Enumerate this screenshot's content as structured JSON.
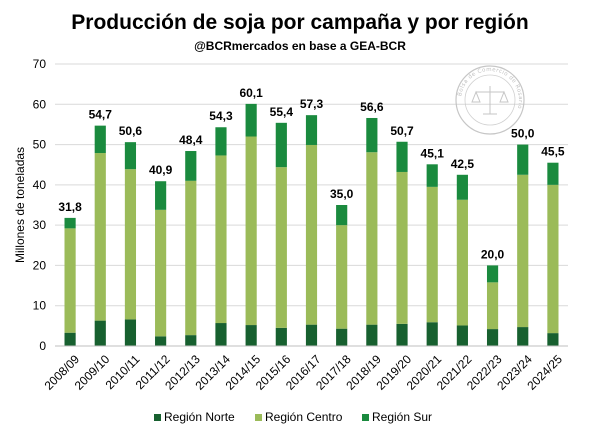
{
  "chart_data": {
    "type": "bar",
    "stacked": true,
    "title": "Producción de soja por campaña y por región",
    "subtitle": "@BCRmercados en base a GEA-BCR",
    "ylabel": "Millones de toneladas",
    "xlabel": "",
    "ylim": [
      0,
      70
    ],
    "yticks": [
      0,
      10,
      20,
      30,
      40,
      50,
      60,
      70
    ],
    "grid": true,
    "legend_position": "bottom",
    "categories": [
      "2008/09",
      "2009/10",
      "2010/11",
      "2011/12",
      "2012/13",
      "2013/14",
      "2014/15",
      "2015/16",
      "2016/17",
      "2017/18",
      "2018/19",
      "2019/20",
      "2020/21",
      "2021/22",
      "2022/23",
      "2023/24",
      "2024/25"
    ],
    "series": [
      {
        "name": "Región Norte",
        "color": "#17602f",
        "values": [
          3.3,
          6.3,
          6.6,
          2.4,
          2.7,
          5.7,
          5.2,
          4.5,
          5.3,
          4.3,
          5.3,
          5.5,
          5.9,
          5.1,
          4.2,
          4.7,
          3.2
        ]
      },
      {
        "name": "Región Centro",
        "color": "#9bbb59",
        "values": [
          25.9,
          41.6,
          37.3,
          31.4,
          38.3,
          41.6,
          46.8,
          39.9,
          44.6,
          25.7,
          42.8,
          37.7,
          33.6,
          31.2,
          11.6,
          37.8,
          36.8
        ]
      },
      {
        "name": "Región Sur",
        "color": "#1a8a3e",
        "values": [
          2.6,
          6.8,
          6.7,
          7.1,
          7.4,
          7.0,
          8.1,
          11.0,
          7.4,
          5.0,
          8.5,
          7.5,
          5.6,
          6.2,
          4.2,
          7.5,
          5.5
        ]
      }
    ],
    "totals": [
      "31,8",
      "54,7",
      "50,6",
      "40,9",
      "48,4",
      "54,3",
      "60,1",
      "55,4",
      "57,3",
      "35,0",
      "56,6",
      "50,7",
      "45,1",
      "42,5",
      "20,0",
      "50,0",
      "45,5"
    ]
  },
  "watermark": {
    "label": "Bolsa de Comercio de Rosario",
    "color": "#b5b5b5"
  }
}
